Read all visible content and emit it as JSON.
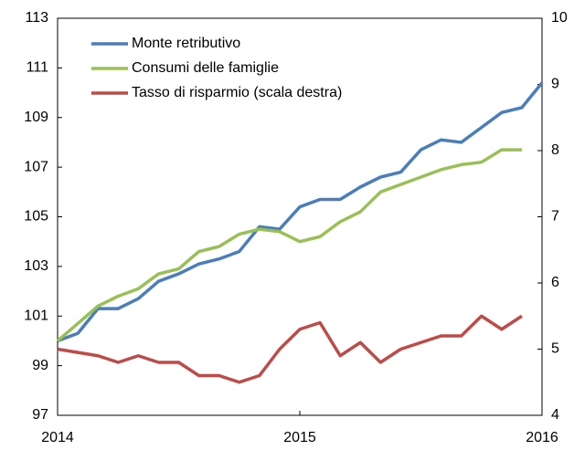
{
  "chart_data": {
    "type": "line",
    "categories": [
      "2014",
      null,
      null,
      null,
      null,
      null,
      null,
      null,
      null,
      null,
      null,
      null,
      "2015",
      null,
      null,
      null,
      null,
      null,
      null,
      null,
      null,
      null,
      null,
      null,
      "2016"
    ],
    "series": [
      {
        "name": "Monte retributivo",
        "color": "#4a7ebb",
        "values": [
          100.0,
          100.3,
          101.3,
          101.3,
          101.7,
          102.4,
          102.7,
          103.1,
          103.3,
          103.6,
          104.6,
          104.5,
          105.4,
          105.7,
          105.7,
          106.2,
          106.6,
          106.8,
          107.7,
          108.1,
          108.0,
          108.6,
          109.2,
          109.4,
          110.4
        ]
      },
      {
        "name": "Consumi delle famiglie",
        "color": "#98c054",
        "values": [
          100.0,
          100.7,
          101.4,
          101.8,
          102.1,
          102.7,
          102.9,
          103.6,
          103.8,
          104.3,
          104.5,
          104.4,
          104.0,
          104.2,
          104.8,
          105.2,
          106.0,
          106.3,
          106.6,
          106.9,
          107.1,
          107.2,
          107.7,
          107.7,
          null
        ]
      },
      {
        "name": "Tasso di risparmio (scala destra)",
        "color": "#be4b48",
        "axis": "y2",
        "values": [
          5.0,
          4.95,
          4.9,
          4.8,
          4.9,
          4.8,
          4.8,
          4.6,
          4.6,
          4.5,
          4.6,
          5.0,
          5.3,
          5.4,
          4.9,
          5.1,
          4.8,
          5.0,
          5.1,
          5.2,
          5.2,
          5.5,
          5.3,
          5.5,
          null
        ]
      }
    ],
    "ylim": [
      97,
      113
    ],
    "yticks": [
      97,
      99,
      101,
      103,
      105,
      107,
      109,
      111,
      113
    ],
    "y2lim": [
      4,
      10
    ],
    "y2ticks": [
      4,
      5,
      6,
      7,
      8,
      9,
      10
    ],
    "legend": "upper left"
  }
}
